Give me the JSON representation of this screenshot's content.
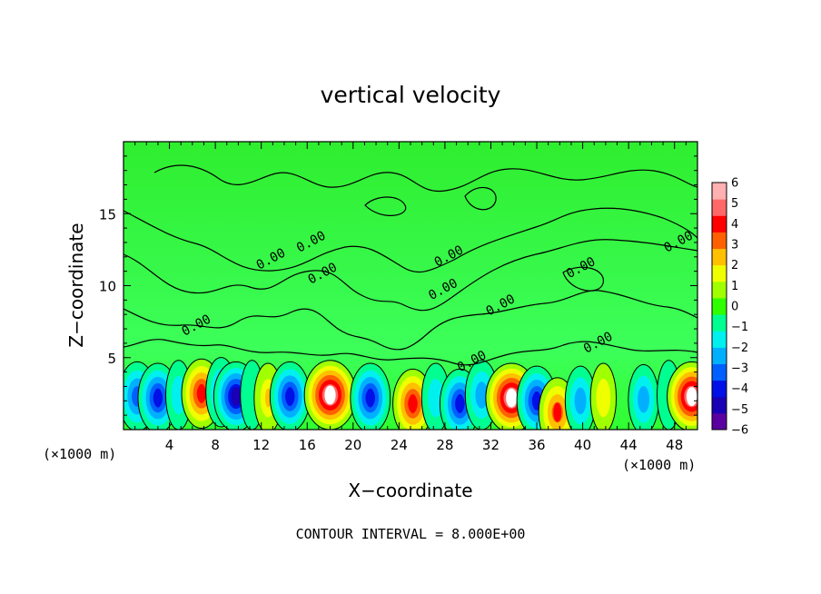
{
  "chart_data": {
    "type": "heatmap",
    "title": "vertical velocity",
    "xlabel": "X−coordinate",
    "ylabel": "Z−coordinate",
    "x_unit_left": "(×1000 m)",
    "x_unit_right": "(×1000 m)",
    "footer": "CONTOUR INTERVAL = 8.000E+00",
    "xlim": [
      0,
      50
    ],
    "ylim": [
      0,
      20
    ],
    "x_ticks": [
      {
        "value": 4,
        "label": "4"
      },
      {
        "value": 8,
        "label": "8"
      },
      {
        "value": 12,
        "label": "12"
      },
      {
        "value": 16,
        "label": "16"
      },
      {
        "value": 20,
        "label": "20"
      },
      {
        "value": 24,
        "label": "24"
      },
      {
        "value": 28,
        "label": "28"
      },
      {
        "value": 32,
        "label": "32"
      },
      {
        "value": 36,
        "label": "36"
      },
      {
        "value": 40,
        "label": "40"
      },
      {
        "value": 44,
        "label": "44"
      },
      {
        "value": 48,
        "label": "48"
      }
    ],
    "y_ticks": [
      {
        "value": 5,
        "label": "5"
      },
      {
        "value": 10,
        "label": "10"
      },
      {
        "value": 15,
        "label": "15"
      }
    ],
    "colorbar": {
      "range": [
        -6,
        6
      ],
      "labels": [
        "6",
        "5",
        "4",
        "3",
        "2",
        "1",
        "0",
        "−1",
        "−2",
        "−3",
        "−4",
        "−5",
        "−6"
      ],
      "colors": [
        "#5a00a0",
        "#1a00b4",
        "#0010e6",
        "#0060ff",
        "#00b0ff",
        "#00f0f0",
        "#00ff90",
        "#30ff00",
        "#a0ff00",
        "#f0ff00",
        "#ffc000",
        "#ff6000",
        "#ff0000",
        "#ff6868",
        "#ffb0b0"
      ]
    },
    "contour_labels": [
      {
        "x": 13.0,
        "z": 11.6,
        "text": "0.00"
      },
      {
        "x": 16.5,
        "z": 12.8,
        "text": "0.00"
      },
      {
        "x": 17.5,
        "z": 10.6,
        "text": "0.00"
      },
      {
        "x": 6.5,
        "z": 7.0,
        "text": "0.00"
      },
      {
        "x": 28.5,
        "z": 11.8,
        "text": "0.00"
      },
      {
        "x": 28.0,
        "z": 9.5,
        "text": "0.00"
      },
      {
        "x": 33.0,
        "z": 8.4,
        "text": "0.00"
      },
      {
        "x": 30.5,
        "z": 4.5,
        "text": "0.00"
      },
      {
        "x": 40.0,
        "z": 11.0,
        "text": "0.00"
      },
      {
        "x": 41.5,
        "z": 5.8,
        "text": "0.00"
      },
      {
        "x": 48.5,
        "z": 12.8,
        "text": "0.00"
      }
    ],
    "cells": [
      {
        "x": 1.2,
        "z": 2.3,
        "w": -4.0
      },
      {
        "x": 3.0,
        "z": 2.2,
        "w": -4.5
      },
      {
        "x": 4.8,
        "z": 2.4,
        "w": -1.5
      },
      {
        "x": 6.8,
        "z": 2.5,
        "w": 4.5
      },
      {
        "x": 8.5,
        "z": 2.6,
        "w": -2.5
      },
      {
        "x": 9.8,
        "z": 2.3,
        "w": -5.5
      },
      {
        "x": 11.2,
        "z": 2.4,
        "w": -1.0
      },
      {
        "x": 12.6,
        "z": 2.2,
        "w": 2.0
      },
      {
        "x": 14.5,
        "z": 2.3,
        "w": -4.5
      },
      {
        "x": 18.0,
        "z": 2.4,
        "w": 7.0
      },
      {
        "x": 21.5,
        "z": 2.2,
        "w": -4.5
      },
      {
        "x": 25.2,
        "z": 1.8,
        "w": 4.5
      },
      {
        "x": 27.2,
        "z": 2.2,
        "w": -2.0
      },
      {
        "x": 29.3,
        "z": 1.8,
        "w": -4.5
      },
      {
        "x": 31.2,
        "z": 2.4,
        "w": -3.0
      },
      {
        "x": 33.8,
        "z": 2.2,
        "w": 7.0
      },
      {
        "x": 36.0,
        "z": 2.0,
        "w": -4.5
      },
      {
        "x": 37.8,
        "z": 1.2,
        "w": 4.0
      },
      {
        "x": 39.8,
        "z": 2.0,
        "w": -2.5
      },
      {
        "x": 41.8,
        "z": 2.2,
        "w": 1.5
      },
      {
        "x": 45.3,
        "z": 2.1,
        "w": -2.5
      },
      {
        "x": 47.5,
        "z": 2.4,
        "w": -1.0
      },
      {
        "x": 49.5,
        "z": 2.3,
        "w": 6.5
      }
    ]
  }
}
